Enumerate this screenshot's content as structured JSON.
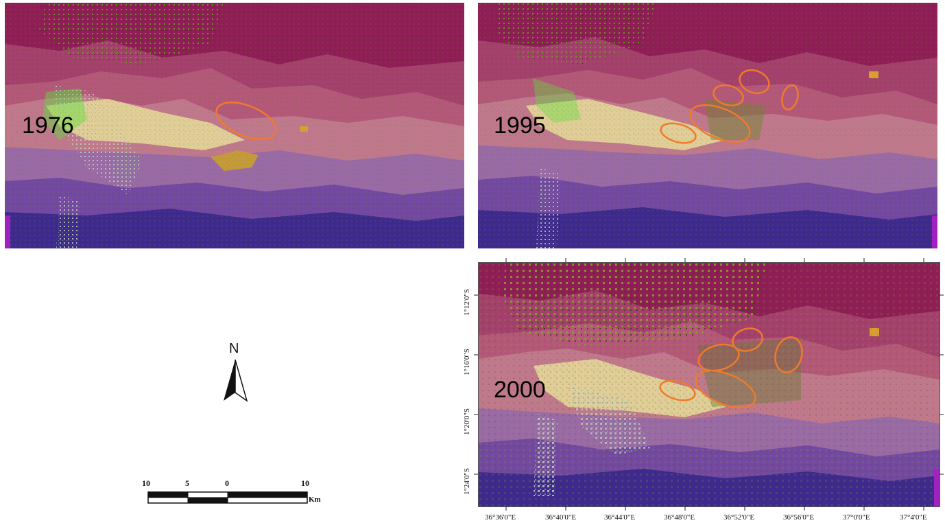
{
  "panels": [
    {
      "id": "p1976",
      "label": "1976"
    },
    {
      "id": "p1995",
      "label": "1995"
    },
    {
      "id": "p2000",
      "label": "2000"
    }
  ],
  "colors": {
    "north_band": "#8e1e55",
    "upper_band": "#a4406c",
    "mid_band": "#c0788d",
    "pale_band": "#e0cd98",
    "lavender_band": "#9a6aa6",
    "purple_band": "#7248a0",
    "deep_band": "#3e2a8c",
    "vegetation": "#6a9a20",
    "bright_veg": "#5fe03a",
    "soil": "#c49a3a",
    "highlight_ellipse": "#f07a2a"
  },
  "north_arrow": {
    "letter": "N"
  },
  "scale_bar": {
    "labels": [
      "10",
      "5",
      "0",
      "10"
    ],
    "unit": "Km"
  },
  "axes": {
    "x_ticks": [
      "36°36'0\"E",
      "36°40'0\"E",
      "36°44'0\"E",
      "36°48'0\"E",
      "36°52'0\"E",
      "36°56'0\"E",
      "37°0'0\"E",
      "37°4'0\"E"
    ],
    "y_ticks": [
      "1°12'0\"S",
      "1°16'0\"S",
      "1°20'0\"S",
      "1°24'0\"S"
    ]
  }
}
